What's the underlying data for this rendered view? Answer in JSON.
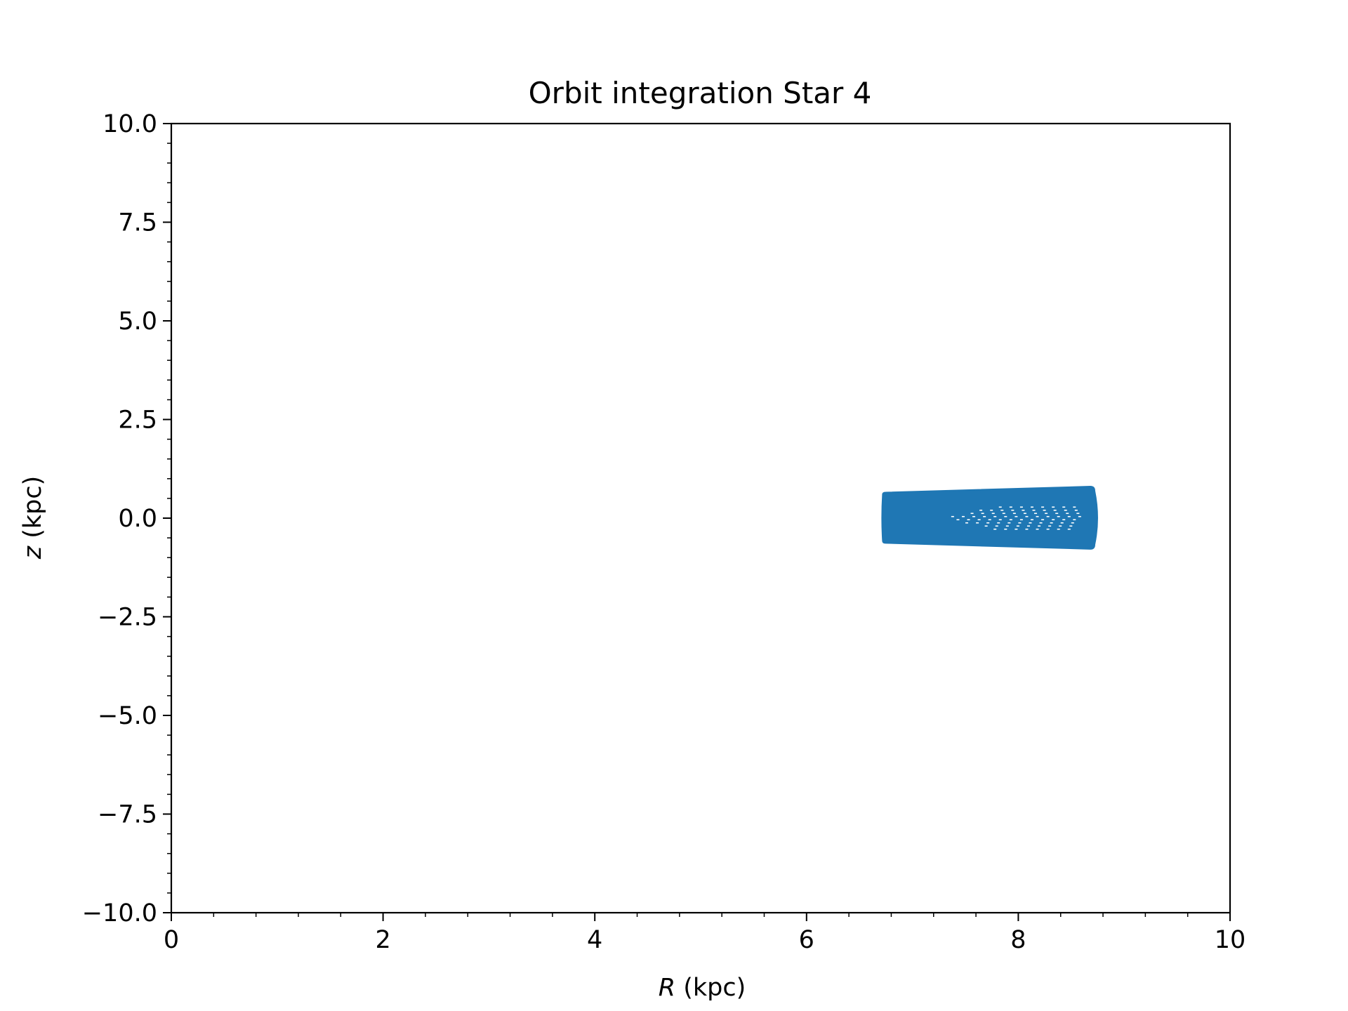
{
  "chart_data": {
    "type": "scatter",
    "title": "Orbit integration Star 4",
    "xlabel_var": "R",
    "xlabel_unit": " (kpc)",
    "ylabel_var": "z",
    "ylabel_unit": " (kpc)",
    "xlim": [
      0,
      10
    ],
    "ylim": [
      -10,
      10
    ],
    "x_ticks": [
      0,
      2,
      4,
      6,
      8,
      10
    ],
    "x_tick_labels": [
      "0",
      "2",
      "4",
      "6",
      "8",
      "10"
    ],
    "y_ticks": [
      -10,
      -7.5,
      -5,
      -2.5,
      0,
      2.5,
      5,
      7.5,
      10
    ],
    "y_tick_labels": [
      "−10.0",
      "−7.5",
      "−5.0",
      "−2.5",
      "0.0",
      "2.5",
      "5.0",
      "7.5",
      "10.0"
    ],
    "grid": false,
    "point_color": "#1f77b4",
    "orbit_region": {
      "r_min": 6.72,
      "r_max": 8.72,
      "z_top_at_r_min": 0.65,
      "z_top_at_r_max": 0.8,
      "z_bottom_at_r_min": -0.63,
      "z_bottom_at_r_max": -0.78
    },
    "orbit_inner_gap": {
      "r_min": 7.3,
      "r_max": 8.6,
      "z_half_width": 0.28
    }
  }
}
